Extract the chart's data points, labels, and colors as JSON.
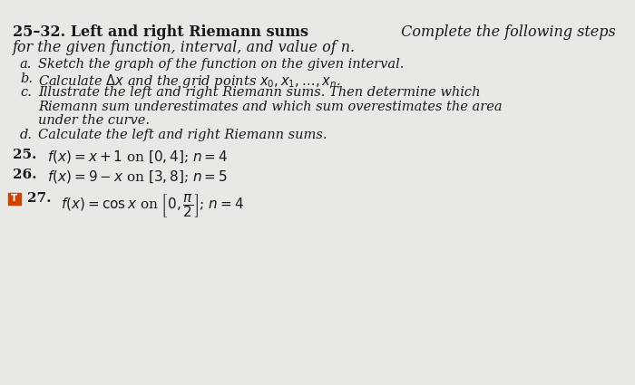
{
  "background_color": "#e8e8e4",
  "text_color": "#1a1a1a",
  "title_bold": "25–32. Left and right Riemann sums",
  "title_italic": " Complete the following steps",
  "subtitle_italic": "for the given function, interval, and value of n.",
  "item_a": "Sketch the graph of the function on the given interval.",
  "item_b_pre": "Calculate ",
  "item_b_post": "x and the grid points x₀, x₁, . . . , xₙ.",
  "item_c1": "Illustrate the left and right Riemann sums. Then determine which",
  "item_c2": "Riemann sum underestimates and which sum overestimates the area",
  "item_c3": "under the curve.",
  "item_d": "Calculate the left and right Riemann sums.",
  "p25_num": "25.",
  "p25_body": "$f(x) = x + 1$ on $[0, 4]$; $n = 4$",
  "p26_num": "26.",
  "p26_body": "$f(x) = 9 - x$ on $[3, 8]$; $n = 5$",
  "p27_num": "27.",
  "p27_body": "$f(x) = \\cos x$ on $\\left[0, \\dfrac{\\pi}{2}\\right]$; $n = 4$",
  "box_color": "#cc4400",
  "font_size_title": 11.5,
  "font_size_body": 10.5,
  "font_size_prob": 11.0
}
